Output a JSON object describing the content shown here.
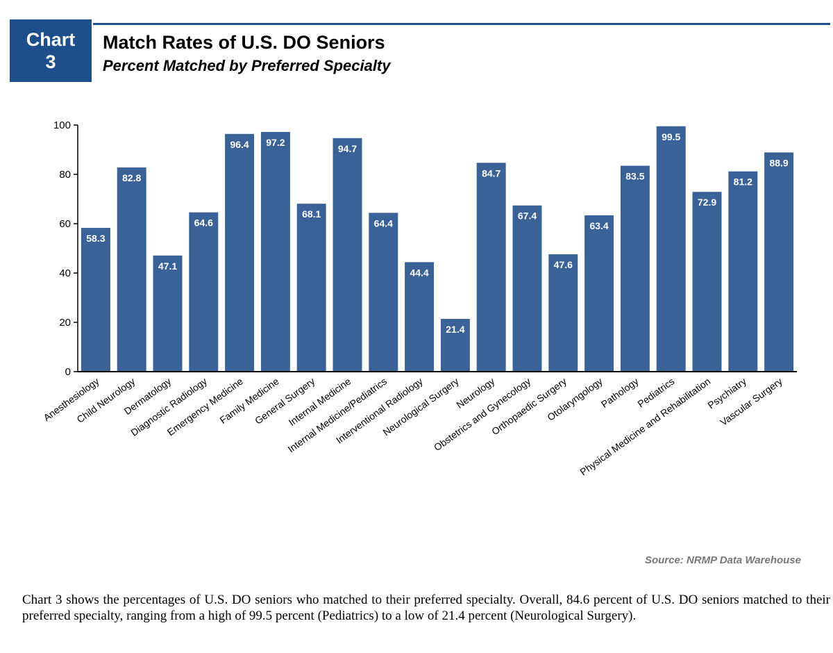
{
  "header": {
    "badge_word": "Chart",
    "badge_number": "3",
    "title": "Match Rates of U.S. DO Seniors",
    "subtitle": "Percent Matched by Preferred Specialty"
  },
  "colors": {
    "accent": "#1f4e8c",
    "bar": "#3a6296",
    "bar_label": "#ffffff"
  },
  "chart_data": {
    "type": "bar",
    "title": "Match Rates of U.S. DO Seniors",
    "subtitle": "Percent Matched by Preferred Specialty",
    "xlabel": "",
    "ylabel": "",
    "ylim": [
      0,
      100
    ],
    "yticks": [
      0,
      20,
      40,
      60,
      80,
      100
    ],
    "grid": false,
    "categories": [
      "Anesthesiology",
      "Child Neurology",
      "Dermatology",
      "Diagnostic Radiology",
      "Emergency Medicine",
      "Family Medicine",
      "General Surgery",
      "Internal Medicine",
      "Internal Medicine/Pediatrics",
      "Interventional Radiology",
      "Neurological Surgery",
      "Neurology",
      "Obstetrics and Gynecology",
      "Orthopaedic Surgery",
      "Otolaryngology",
      "Pathology",
      "Pediatrics",
      "Physical Medicine and Rehabilitation",
      "Psychiatry",
      "Vascular Surgery"
    ],
    "values": [
      58.3,
      82.8,
      47.1,
      64.6,
      96.4,
      97.2,
      68.1,
      94.7,
      64.4,
      44.4,
      21.4,
      84.7,
      67.4,
      47.6,
      63.4,
      83.5,
      99.5,
      72.9,
      81.2,
      88.9
    ],
    "value_labels": [
      "58.3",
      "82.8",
      "47.1",
      "64.6",
      "96.4",
      "97.2",
      "68.1",
      "94.7",
      "64.4",
      "44.4",
      "21.4",
      "84.7",
      "67.4",
      "47.6",
      "63.4",
      "83.5",
      "99.5",
      "72.9",
      "81.2",
      "88.9"
    ]
  },
  "source": "Source: NRMP Data Warehouse",
  "caption": "Chart 3 shows the percentages of U.S. DO seniors who matched to their preferred specialty. Overall, 84.6 percent of U.S. DO seniors matched to their preferred specialty, ranging from a high of 99.5 percent (Pediatrics) to a low of 21.4 percent (Neurological Surgery)."
}
